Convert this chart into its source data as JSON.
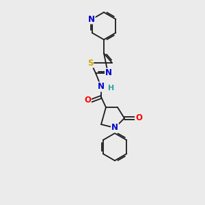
{
  "background_color": "#ebebeb",
  "bond_color": "#1a1a1a",
  "atom_colors": {
    "N": "#0000cc",
    "O": "#ff0000",
    "S": "#ccaa00",
    "H": "#2aa0a0",
    "C": "#1a1a1a"
  },
  "font_size_atom": 8.5,
  "figsize": [
    3.0,
    3.0
  ],
  "dpi": 100
}
